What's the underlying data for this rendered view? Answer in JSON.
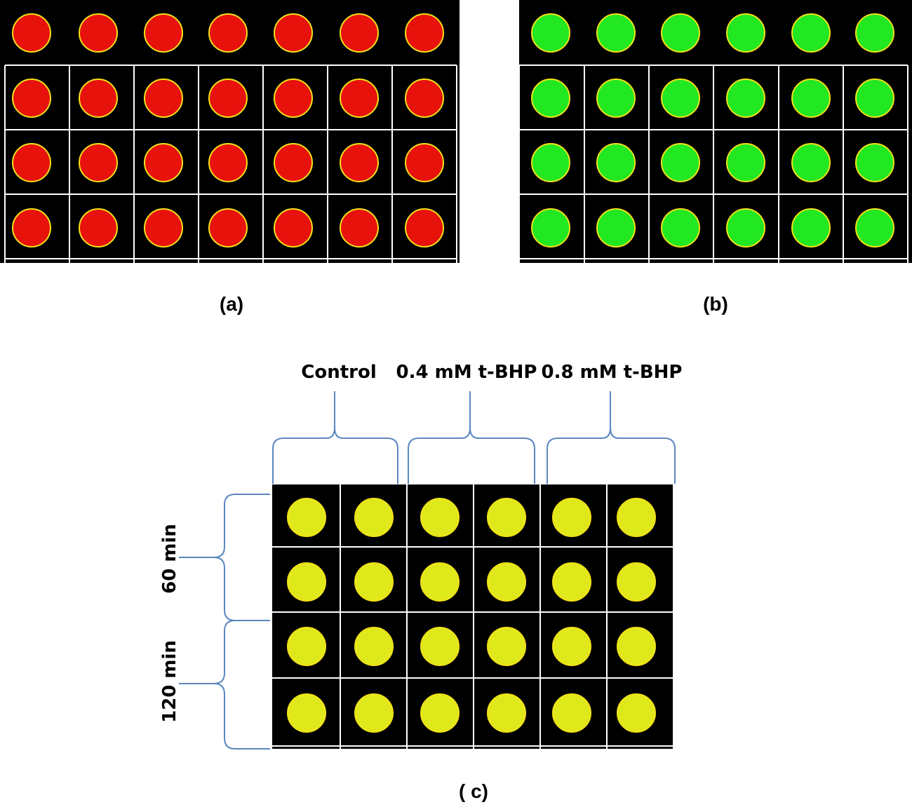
{
  "panels": {
    "a": {
      "label": "(a)"
    },
    "b": {
      "label": "(b)"
    },
    "c": {
      "label": "( c)",
      "column_groups": [
        "Control",
        "0.4 mM t-BHP",
        "0.8 mM t-BHP"
      ],
      "row_groups": [
        "60 min",
        "120 min"
      ]
    }
  }
}
